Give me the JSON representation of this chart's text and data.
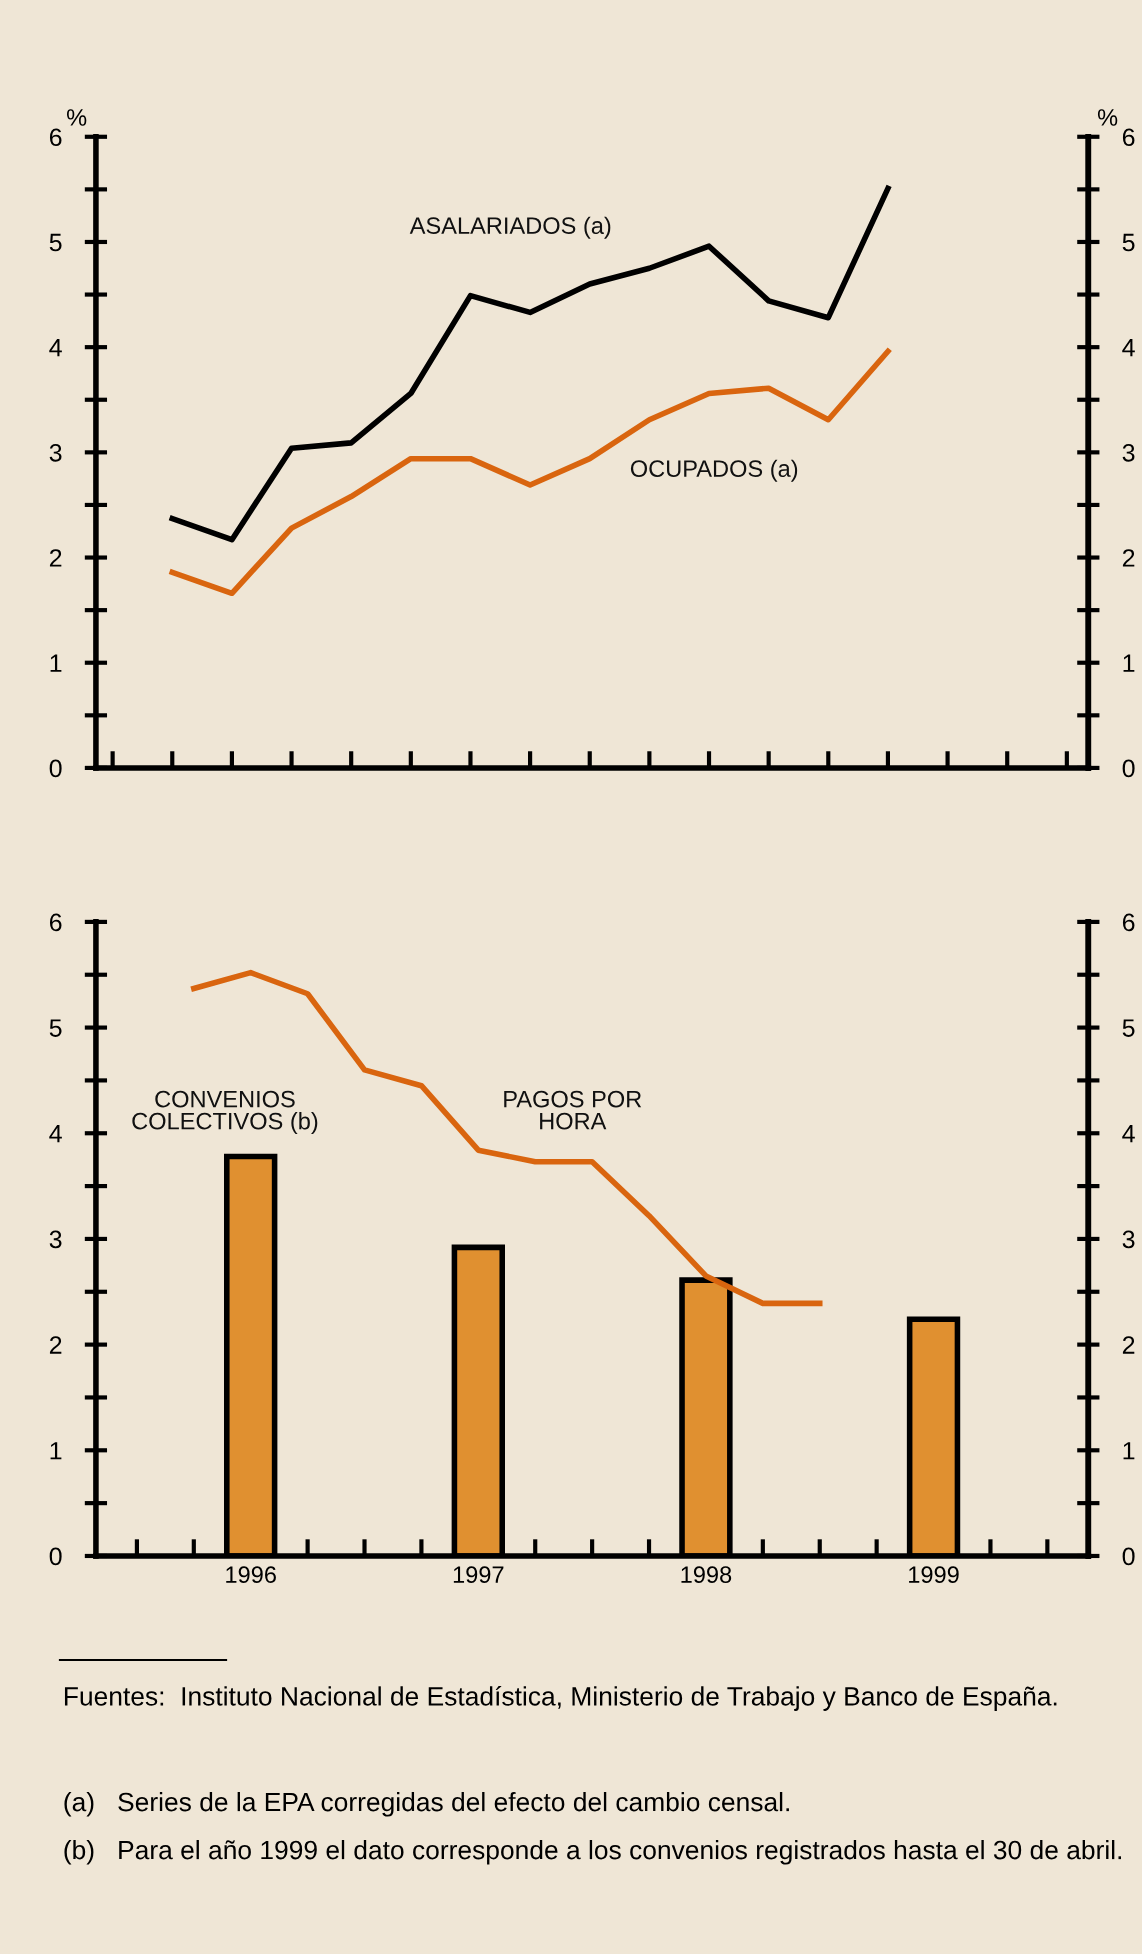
{
  "chart_data": [
    {
      "type": "line",
      "ylabel": "%",
      "y2label": "%",
      "categories": [
        null,
        null,
        null,
        null,
        null,
        null,
        null,
        null,
        null,
        null,
        null,
        null,
        null,
        null,
        null,
        null,
        null
      ],
      "ylim": [
        0,
        6
      ],
      "yticks": [
        0,
        {
          "value": 0.5,
          "label": null
        },
        1,
        {
          "value": 1.5,
          "label": null
        },
        2,
        {
          "value": 2.5,
          "label": null
        },
        3,
        {
          "value": 3.5,
          "label": null
        },
        4,
        {
          "value": 4.5,
          "label": null
        },
        5,
        {
          "value": 5.5,
          "label": null
        },
        6
      ],
      "y2lim": [
        0,
        6
      ],
      "y2ticks": [
        0,
        {
          "value": 0.5,
          "label": null
        },
        1,
        {
          "value": 1.5,
          "label": null
        },
        2,
        {
          "value": 2.5,
          "label": null
        },
        3,
        {
          "value": 3.5,
          "label": null
        },
        4,
        {
          "value": 4.5,
          "label": null
        },
        5,
        {
          "value": 5.5,
          "label": null
        },
        6
      ],
      "tick_labels": "y",
      "grid": false,
      "legend": false,
      "marker": "none",
      "line_style": "solid",
      "series": [
        {
          "name": "ASALARIADOS (a)",
          "color": "#000000",
          "values": [
            null,
            2.37,
            2.17,
            3.04,
            3.09,
            3.56,
            4.49,
            4.33,
            4.6,
            4.75,
            4.96,
            4.44,
            4.28,
            5.51,
            null,
            null,
            null
          ]
        },
        {
          "name": "OCUPADOS (a)",
          "color": "#d9650f",
          "values": [
            null,
            1.86,
            1.66,
            2.28,
            2.58,
            2.94,
            2.94,
            2.69,
            2.94,
            3.31,
            3.56,
            3.61,
            3.31,
            3.96,
            null,
            null,
            null
          ]
        }
      ]
    },
    {
      "type": "bar",
      "xlim": [
        1995.32,
        1999.68
      ],
      "xticks": [
        {
          "value": 1995.5,
          "label": null
        },
        {
          "value": 1995.75,
          "label": null
        },
        1996,
        {
          "value": 1996.25,
          "label": null
        },
        {
          "value": 1996.5,
          "label": null
        },
        {
          "value": 1996.75,
          "label": null
        },
        1997,
        {
          "value": 1997.25,
          "label": null
        },
        {
          "value": 1997.5,
          "label": null
        },
        {
          "value": 1997.75,
          "label": null
        },
        1998,
        {
          "value": 1998.25,
          "label": null
        },
        {
          "value": 1998.5,
          "label": null
        },
        {
          "value": 1998.75,
          "label": null
        },
        1999,
        {
          "value": 1999.25,
          "label": null
        },
        {
          "value": 1999.5,
          "label": null
        }
      ],
      "ylim": [
        0,
        6
      ],
      "yticks": [
        0,
        {
          "value": 0.5,
          "label": null
        },
        1,
        {
          "value": 1.5,
          "label": null
        },
        2,
        {
          "value": 2.5,
          "label": null
        },
        3,
        {
          "value": 3.5,
          "label": null
        },
        4,
        {
          "value": 4.5,
          "label": null
        },
        5,
        {
          "value": 5.5,
          "label": null
        },
        6
      ],
      "y2lim": [
        0,
        6
      ],
      "y2ticks": [
        0,
        {
          "value": 0.5,
          "label": null
        },
        1,
        {
          "value": 1.5,
          "label": null
        },
        2,
        {
          "value": 2.5,
          "label": null
        },
        3,
        {
          "value": 3.5,
          "label": null
        },
        4,
        {
          "value": 4.5,
          "label": null
        },
        5,
        {
          "value": 5.5,
          "label": null
        },
        6
      ],
      "grid": false,
      "legend": false,
      "marker": "none",
      "line_style": "solid",
      "series": [
        {
          "name": "CONVENIOS\nCOLECTIVOS (b)",
          "type": "bar",
          "color": "#e09030",
          "x": [
            1996,
            1997,
            1998,
            1999
          ],
          "values": [
            3.78,
            2.92,
            2.61,
            2.24
          ]
        },
        {
          "name": "PAGOS POR\nHORA",
          "type": "line",
          "color": "#d9650f",
          "x": [
            1995.75,
            1996,
            1996.25,
            1996.5,
            1996.75,
            1997,
            1997.25,
            1997.5,
            1997.75,
            1998,
            1998.25,
            1998.5
          ],
          "values": [
            5.37,
            5.52,
            5.32,
            4.6,
            4.45,
            3.84,
            3.73,
            3.73,
            3.22,
            2.65,
            2.39,
            2.39
          ]
        }
      ],
      "annotations": [
        "Fuentes:  Instituto Nacional de Estadística, Ministerio de Trabajo y Banco de España.",
        "(a)   Series de la EPA corregidas del efecto del cambio censal.",
        "(b)   Para el año 1999 el dato corresponde a los convenios registrados hasta el 30 de abril."
      ]
    }
  ]
}
